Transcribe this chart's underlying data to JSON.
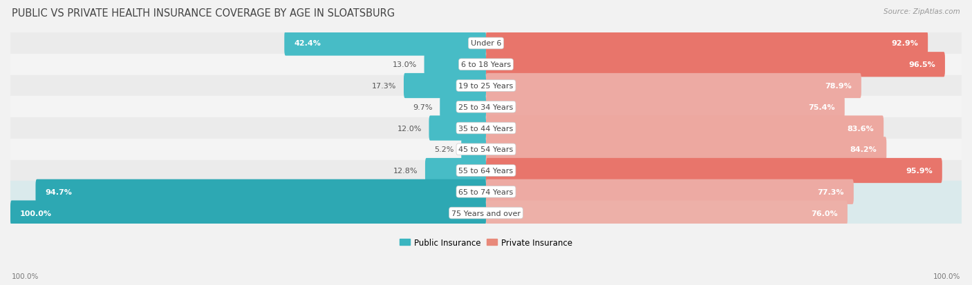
{
  "title": "PUBLIC VS PRIVATE HEALTH INSURANCE COVERAGE BY AGE IN SLOATSBURG",
  "source": "Source: ZipAtlas.com",
  "categories": [
    "Under 6",
    "6 to 18 Years",
    "19 to 25 Years",
    "25 to 34 Years",
    "35 to 44 Years",
    "45 to 54 Years",
    "55 to 64 Years",
    "65 to 74 Years",
    "75 Years and over"
  ],
  "public_values": [
    42.4,
    13.0,
    17.3,
    9.7,
    12.0,
    5.2,
    12.8,
    94.7,
    100.0
  ],
  "private_values": [
    92.9,
    96.5,
    78.9,
    75.4,
    83.6,
    84.2,
    95.9,
    77.3,
    76.0
  ],
  "public_colors": [
    "#3ab5c0",
    "#3ab5c0",
    "#3ab5c0",
    "#3ab5c0",
    "#3ab5c0",
    "#3ab5c0",
    "#3ab5c0",
    "#2a9faa",
    "#2a9faa"
  ],
  "private_colors": [
    "#e8756a",
    "#e8756a",
    "#e8a89f",
    "#e8a89f",
    "#e8a09a",
    "#e8a09a",
    "#e8756a",
    "#e8a89f",
    "#e8b0a8"
  ],
  "public_color": "#3ab5c0",
  "private_color": "#e8897a",
  "bar_height": 0.62,
  "row_bg_colors": [
    "#eeeeee",
    "#f8f8f8",
    "#eeeeee",
    "#f8f8f8",
    "#eeeeee",
    "#f8f8f8",
    "#eeeeee",
    "#d8e8ea",
    "#d8e8ea"
  ],
  "label_color_dark": "#555555",
  "label_color_white": "#ffffff",
  "legend_public": "Public Insurance",
  "legend_private": "Private Insurance",
  "title_fontsize": 10.5,
  "label_fontsize": 8.0,
  "category_fontsize": 8.0,
  "source_fontsize": 7.5,
  "footer_fontsize": 7.5,
  "background_color": "#f2f2f2"
}
